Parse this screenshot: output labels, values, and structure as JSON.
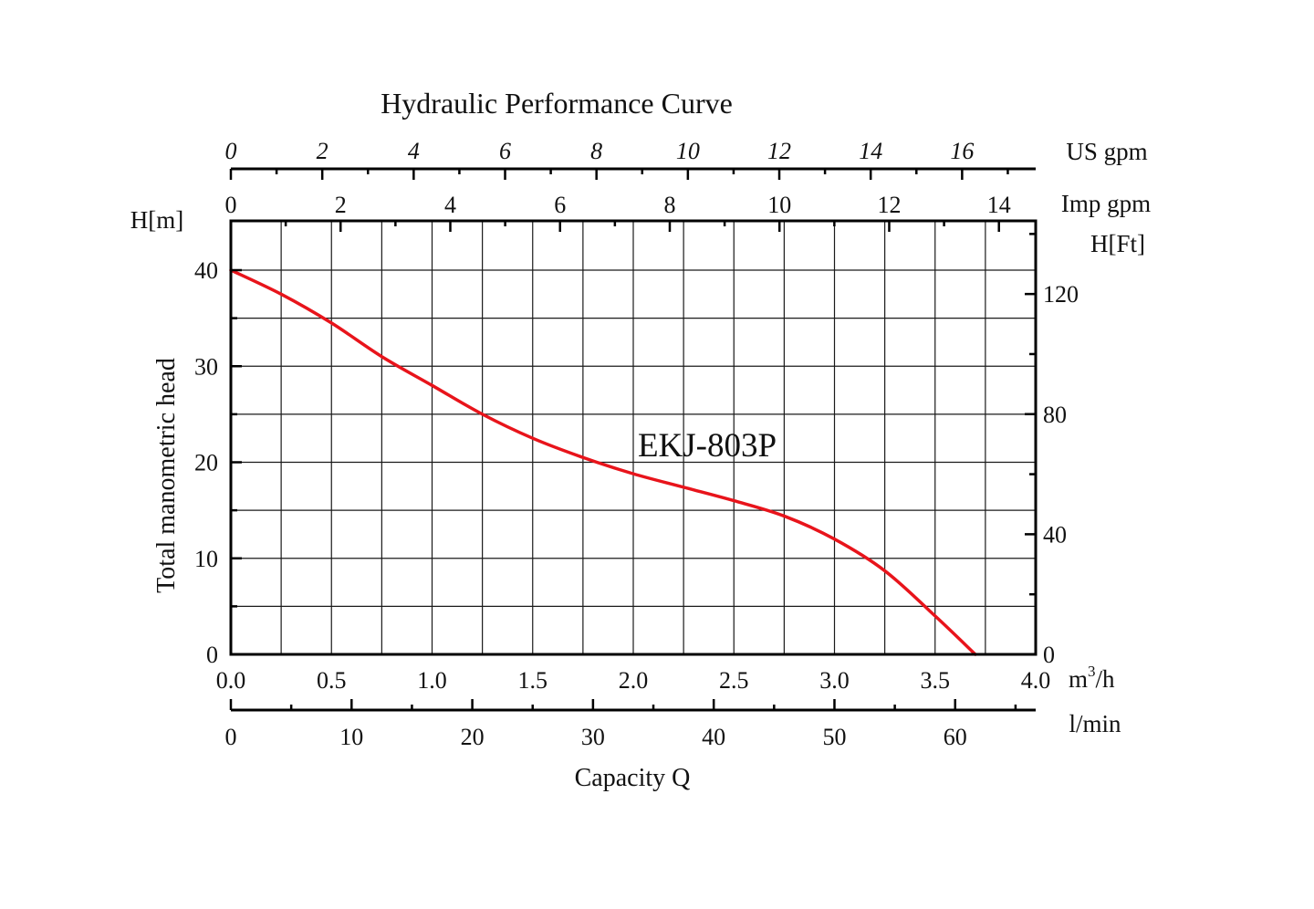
{
  "chart_data": {
    "type": "line",
    "title": "Hydraulic Performance Curve",
    "model_label": "EKJ-803P",
    "x_primary": {
      "label": "Capacity Q",
      "unit": "m³/h",
      "unit_base": "m",
      "unit_sup": "3",
      "unit_rest": "/h",
      "range": [
        0,
        4
      ],
      "ticks": [
        "0.0",
        "0.5",
        "1.0",
        "1.5",
        "2.0",
        "2.5",
        "3.0",
        "3.5",
        "4.0"
      ],
      "grid_step": 0.25
    },
    "x_lmin": {
      "unit": "l/min",
      "range": [
        0,
        66.67
      ],
      "ticks": [
        "0",
        "10",
        "20",
        "30",
        "40",
        "50",
        "60"
      ],
      "minor_step": 5
    },
    "x_impgpm": {
      "unit": "Imp gpm",
      "range": [
        0,
        14.67
      ],
      "ticks": [
        "0",
        "2",
        "4",
        "6",
        "8",
        "10",
        "12",
        "14"
      ],
      "minor_step": 1
    },
    "x_usgpm": {
      "unit": "US gpm",
      "range": [
        0,
        17.61
      ],
      "ticks": [
        "0",
        "2",
        "4",
        "6",
        "8",
        "10",
        "12",
        "14",
        "16"
      ],
      "minor_step": 1
    },
    "y_primary": {
      "label": "Total manometric head",
      "unit": "H[m]",
      "range": [
        0,
        44
      ],
      "ticks": [
        "0",
        "10",
        "20",
        "30",
        "40"
      ],
      "grid_step": 5
    },
    "y_ft": {
      "unit": "H[Ft]",
      "range": [
        0,
        144.36
      ],
      "ticks": [
        "0",
        "40",
        "80",
        "120"
      ],
      "minor_step": 20
    },
    "series": [
      {
        "name": "EKJ-803P",
        "color": "#e8141b",
        "x": [
          0,
          0.25,
          0.5,
          0.75,
          1.0,
          1.25,
          1.5,
          1.75,
          2.0,
          2.25,
          2.5,
          2.75,
          3.0,
          3.25,
          3.5,
          3.7
        ],
        "y": [
          40,
          37.5,
          34.5,
          31,
          28,
          25,
          22.5,
          20.5,
          18.8,
          17.4,
          16,
          14.4,
          12,
          8.7,
          4,
          0
        ]
      }
    ]
  }
}
